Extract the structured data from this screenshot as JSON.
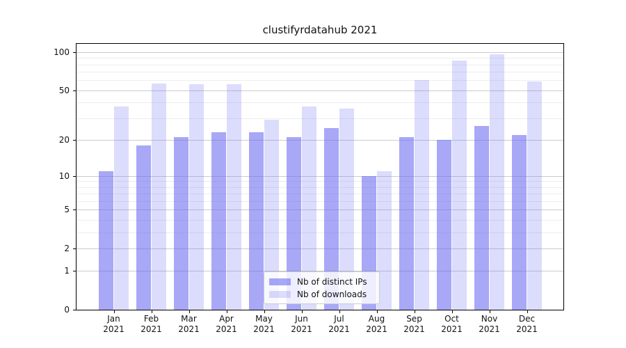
{
  "title": "clustifyrdatahub 2021",
  "chart_data": {
    "type": "bar",
    "title": "clustifyrdatahub 2021",
    "categories": [
      "Jan 2021",
      "Feb 2021",
      "Mar 2021",
      "Apr 2021",
      "May 2021",
      "Jun 2021",
      "Jul 2021",
      "Aug 2021",
      "Sep 2021",
      "Oct 2021",
      "Nov 2021",
      "Dec 2021"
    ],
    "series": [
      {
        "name": "Nb of distinct IPs",
        "color": "rgba(102,102,241,0.57)",
        "values": [
          11,
          18,
          21,
          23,
          23,
          21,
          25,
          10,
          21,
          20,
          26,
          22
        ]
      },
      {
        "name": "Nb of downloads",
        "color": "rgba(102,102,241,0.23)",
        "values": [
          37,
          57,
          56,
          56,
          29,
          37,
          36,
          11,
          60,
          86,
          96,
          59
        ]
      }
    ],
    "xlabel": "",
    "ylabel": "",
    "yscale": "log1p",
    "ylim": [
      0,
      116.4
    ],
    "yticks": [
      0,
      1,
      2,
      5,
      10,
      20,
      50,
      100
    ],
    "minor_gridlines": [
      3,
      4,
      6,
      7,
      8,
      9,
      30,
      40,
      60,
      70,
      80,
      90
    ],
    "grid": "on",
    "legend_position": "lower center"
  },
  "colors": {
    "bar_ips": "rgba(102,102,241,0.57)",
    "bar_downloads": "rgba(102,102,241,0.23)",
    "grid_major": "#cbcbcb",
    "grid_minor": "#ededed",
    "spine": "#000000",
    "text": "#111111",
    "legend_border": "#cccccc"
  }
}
